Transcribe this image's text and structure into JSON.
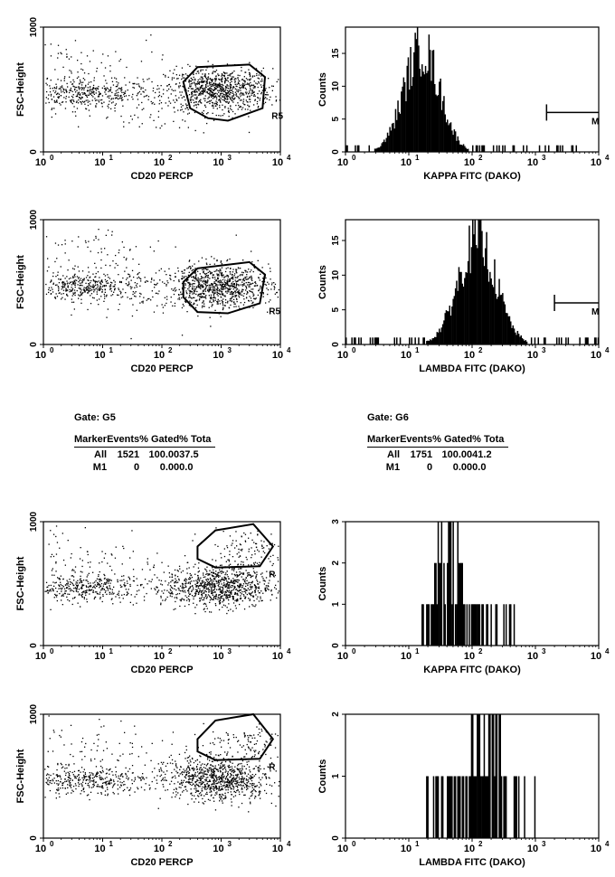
{
  "chart_data": [
    {
      "id": "p1",
      "type": "scatter",
      "xlabel": "CD20 PERCP",
      "ylabel": "FSC-Height",
      "xscale": "log",
      "xlim": [
        1,
        10000
      ],
      "ylim": [
        0,
        1000
      ],
      "yticks": [
        "0",
        "1000"
      ],
      "xticks": [
        "10",
        "10",
        "10",
        "10",
        "10"
      ],
      "xtick_exponents": [
        "0",
        "1",
        "2",
        "3",
        "4"
      ],
      "gate": {
        "label": "R5",
        "polygon": [
          [
            230,
            560
          ],
          [
            400,
            680
          ],
          [
            3000,
            700
          ],
          [
            5500,
            600
          ],
          [
            5000,
            350
          ],
          [
            1300,
            250
          ],
          [
            600,
            270
          ],
          [
            300,
            350
          ]
        ]
      },
      "clusters": [
        {
          "cx": 5,
          "cy": 470,
          "n": 380,
          "sx": 0.55,
          "sy": 55
        },
        {
          "cx": 900,
          "cy": 500,
          "n": 900,
          "sx": 0.45,
          "sy": 85
        },
        {
          "cx": 3,
          "cy": 650,
          "n": 110,
          "sx": 0.8,
          "sy": 160
        },
        {
          "cx": 60,
          "cy": 380,
          "n": 80,
          "sx": 0.9,
          "sy": 120
        }
      ]
    },
    {
      "id": "p2",
      "type": "histogram",
      "xlabel": "KAPPA FITC (DAKO)",
      "ylabel": "Counts",
      "xscale": "log",
      "xlim": [
        1,
        10000
      ],
      "ylim": [
        0,
        19
      ],
      "yticks": [
        "0",
        "5",
        "10",
        "15"
      ],
      "xticks": [
        "10",
        "10",
        "10",
        "10",
        "10"
      ],
      "xtick_exponents": [
        "0",
        "1",
        "2",
        "3",
        "4"
      ],
      "dist": {
        "center": 16,
        "spread": 0.28,
        "peak": 19
      },
      "marker": {
        "label": "M",
        "from": 1500,
        "to": 10000,
        "y": 6
      }
    },
    {
      "id": "p3",
      "type": "scatter",
      "xlabel": "CD20 PERCP",
      "ylabel": "FSC-Height",
      "xscale": "log",
      "xlim": [
        1,
        10000
      ],
      "ylim": [
        0,
        1000
      ],
      "yticks": [
        "0",
        "1000"
      ],
      "xticks": [
        "10",
        "10",
        "10",
        "10",
        "10"
      ],
      "xtick_exponents": [
        "0",
        "1",
        "2",
        "3",
        "4"
      ],
      "gate": {
        "label": "R5",
        "polygon": [
          [
            230,
            500
          ],
          [
            400,
            610
          ],
          [
            3000,
            660
          ],
          [
            5500,
            560
          ],
          [
            4500,
            330
          ],
          [
            1300,
            250
          ],
          [
            400,
            260
          ],
          [
            230,
            380
          ]
        ]
      },
      "clusters": [
        {
          "cx": 5,
          "cy": 470,
          "n": 380,
          "sx": 0.55,
          "sy": 55
        },
        {
          "cx": 900,
          "cy": 470,
          "n": 900,
          "sx": 0.45,
          "sy": 85
        },
        {
          "cx": 4,
          "cy": 700,
          "n": 110,
          "sx": 0.8,
          "sy": 150
        },
        {
          "cx": 60,
          "cy": 380,
          "n": 80,
          "sx": 0.9,
          "sy": 120
        }
      ]
    },
    {
      "id": "p4",
      "type": "histogram",
      "xlabel": "LAMBDA FITC (DAKO)",
      "ylabel": "Counts",
      "xscale": "log",
      "xlim": [
        1,
        10000
      ],
      "ylim": [
        0,
        18
      ],
      "yticks": [
        "0",
        "5",
        "10",
        "15"
      ],
      "xticks": [
        "10",
        "10",
        "10",
        "10",
        "10"
      ],
      "xtick_exponents": [
        "0",
        "1",
        "2",
        "3",
        "4"
      ],
      "dist": {
        "center": 120,
        "spread": 0.3,
        "peak": 18
      },
      "marker": {
        "label": "M",
        "from": 2000,
        "to": 10000,
        "y": 6
      }
    },
    {
      "id": "p5",
      "type": "scatter",
      "xlabel": "CD20 PERCP",
      "ylabel": "FSC-Height",
      "xscale": "log",
      "xlim": [
        1,
        10000
      ],
      "ylim": [
        0,
        1000
      ],
      "yticks": [
        "0",
        "1000"
      ],
      "xticks": [
        "10",
        "10",
        "10",
        "10",
        "10"
      ],
      "xtick_exponents": [
        "0",
        "1",
        "2",
        "3",
        "4"
      ],
      "gate": {
        "label": "R",
        "polygon": [
          [
            400,
            800
          ],
          [
            800,
            930
          ],
          [
            3500,
            980
          ],
          [
            7500,
            800
          ],
          [
            4500,
            640
          ],
          [
            800,
            630
          ],
          [
            400,
            700
          ]
        ]
      },
      "clusters": [
        {
          "cx": 5,
          "cy": 470,
          "n": 380,
          "sx": 0.55,
          "sy": 55
        },
        {
          "cx": 900,
          "cy": 480,
          "n": 900,
          "sx": 0.45,
          "sy": 85
        },
        {
          "cx": 4,
          "cy": 700,
          "n": 110,
          "sx": 0.8,
          "sy": 150
        },
        {
          "cx": 2500,
          "cy": 780,
          "n": 110,
          "sx": 0.35,
          "sy": 80
        }
      ]
    },
    {
      "id": "p6",
      "type": "histogram",
      "xlabel": "KAPPA FITC (DAKO)",
      "ylabel": "Counts",
      "xscale": "log",
      "xlim": [
        1,
        10000
      ],
      "ylim": [
        0,
        3
      ],
      "yticks": [
        "0",
        "1",
        "2",
        "3"
      ],
      "xticks": [
        "10",
        "10",
        "10",
        "10",
        "10"
      ],
      "xtick_exponents": [
        "0",
        "1",
        "2",
        "3",
        "4"
      ],
      "dist": {
        "center": 45,
        "spread": 0.22,
        "peak": 3,
        "sparse": true,
        "range": [
          15,
          500
        ]
      }
    },
    {
      "id": "p7",
      "type": "scatter",
      "xlabel": "CD20 PERCP",
      "ylabel": "FSC-Height",
      "xscale": "log",
      "xlim": [
        1,
        10000
      ],
      "ylim": [
        0,
        1000
      ],
      "yticks": [
        "0",
        "1000"
      ],
      "xticks": [
        "10",
        "10",
        "10",
        "10",
        "10"
      ],
      "xtick_exponents": [
        "0",
        "1",
        "2",
        "3",
        "4"
      ],
      "gate": {
        "label": "R",
        "polygon": [
          [
            400,
            800
          ],
          [
            800,
            950
          ],
          [
            3500,
            1000
          ],
          [
            7500,
            800
          ],
          [
            4500,
            640
          ],
          [
            800,
            630
          ],
          [
            400,
            700
          ]
        ]
      },
      "clusters": [
        {
          "cx": 5,
          "cy": 470,
          "n": 380,
          "sx": 0.55,
          "sy": 55
        },
        {
          "cx": 900,
          "cy": 480,
          "n": 900,
          "sx": 0.45,
          "sy": 85
        },
        {
          "cx": 4,
          "cy": 700,
          "n": 110,
          "sx": 0.8,
          "sy": 150
        },
        {
          "cx": 2500,
          "cy": 780,
          "n": 110,
          "sx": 0.35,
          "sy": 80
        }
      ]
    },
    {
      "id": "p8",
      "type": "histogram",
      "xlabel": "LAMBDA FITC (DAKO)",
      "ylabel": "Counts",
      "xscale": "log",
      "xlim": [
        1,
        10000
      ],
      "ylim": [
        0,
        2
      ],
      "yticks": [
        "0",
        "1",
        "2"
      ],
      "xticks": [
        "10",
        "10",
        "10",
        "10",
        "10"
      ],
      "xtick_exponents": [
        "0",
        "1",
        "2",
        "3",
        "4"
      ],
      "dist": {
        "center": 170,
        "spread": 0.3,
        "peak": 2,
        "sparse": true,
        "range": [
          18,
          1000
        ]
      }
    }
  ],
  "stats": [
    {
      "gate": "Gate: G5",
      "headers": [
        "Marker",
        "Events",
        "% Gated",
        "% Tota"
      ],
      "rows": [
        [
          "All",
          "1521",
          "100.00",
          "37.5"
        ],
        [
          "M1",
          "0",
          "0.00",
          "0.0"
        ]
      ]
    },
    {
      "gate": "Gate: G6",
      "headers": [
        "Marker",
        "Events",
        "% Gated",
        "% Tota"
      ],
      "rows": [
        [
          "All",
          "1751",
          "100.00",
          "41.2"
        ],
        [
          "M1",
          "0",
          "0.00",
          "0.0"
        ]
      ]
    }
  ]
}
